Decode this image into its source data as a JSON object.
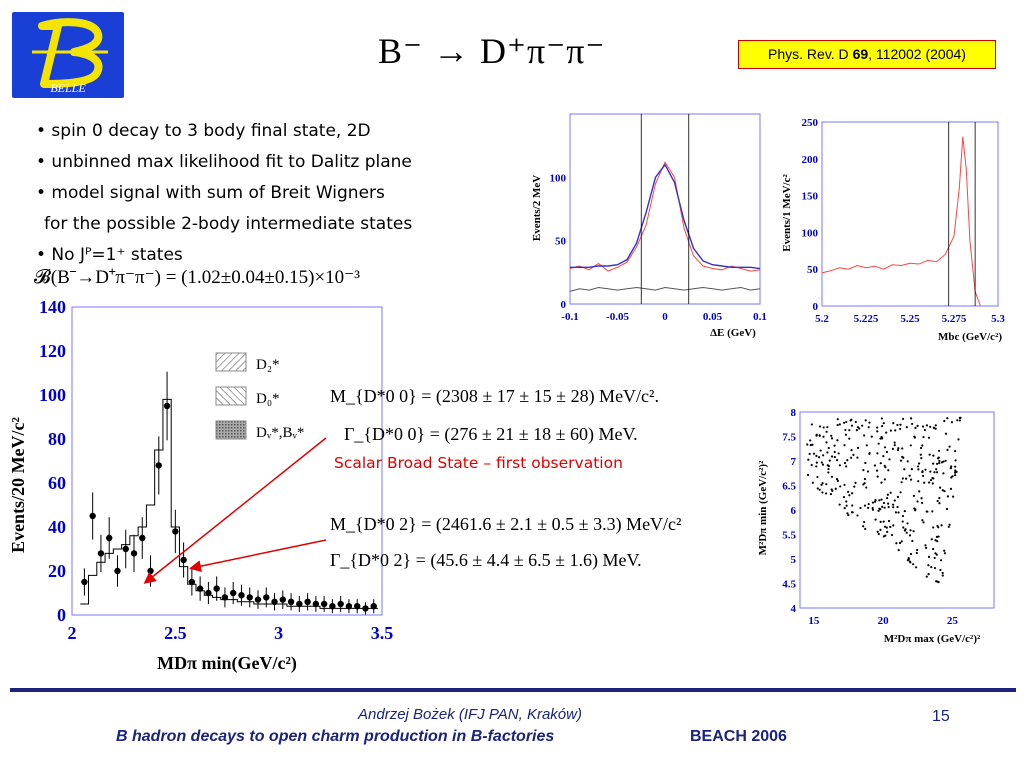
{
  "header": {
    "logo_text": "BELLE",
    "title": "B⁻ → D⁺π⁻π⁻",
    "reference_prefix": "Phys. Rev. D ",
    "reference_volume": "69",
    "reference_suffix": ", 112002 (2004)"
  },
  "bullets": [
    "• spin 0 decay to 3 body final state, 2D",
    "• unbinned max likelihood fit to Dalitz plane",
    "• model signal with sum of Breit Wigners",
    "for the possible 2-body intermediate states",
    "• No Jᴾ=1⁺ states"
  ],
  "branching_fraction": "𝓑(B⁻→D⁺π⁻π⁻) = (1.02±0.04±0.15)×10⁻³",
  "results": {
    "d0_mass": "M_{D*0 0} = (2308 ± 17 ± 15 ± 28)  MeV/c².",
    "d0_width": "Γ_{D*0 0} = (276 ± 21 ± 18 ± 60)  MeV.",
    "scalar_note": "Scalar Broad State – first observation",
    "d2_mass": "M_{D*0 2} = (2461.6 ± 2.1 ± 0.5 ± 3.3)  MeV/c²",
    "d2_width": "Γ_{D*0 2} = (45.6 ± 4.4 ± 6.5 ± 1.6)  MeV."
  },
  "chart_data": [
    {
      "type": "histogram",
      "title": "",
      "xlabel": "MDπ min(GeV/c²)",
      "ylabel": "Events/20 MeV/c²",
      "xlim": [
        2,
        3.5
      ],
      "ylim": [
        0,
        140
      ],
      "xticks": [
        "2",
        "2.5",
        "3",
        "3.5"
      ],
      "yticks": [
        "0",
        "20",
        "40",
        "60",
        "80",
        "100",
        "120",
        "140"
      ],
      "legend": [
        "D₂*",
        "D₀*",
        "Dᵥ*,Bᵥ*"
      ],
      "legend_placement": "upper-middle",
      "x": [
        2.06,
        2.1,
        2.14,
        2.18,
        2.22,
        2.26,
        2.3,
        2.34,
        2.38,
        2.42,
        2.46,
        2.5,
        2.54,
        2.58,
        2.62,
        2.66,
        2.7,
        2.74,
        2.78,
        2.82,
        2.86,
        2.9,
        2.94,
        2.98,
        3.02,
        3.06,
        3.1,
        3.14,
        3.18,
        3.22,
        3.26,
        3.3,
        3.34,
        3.38,
        3.42,
        3.46
      ],
      "series": [
        {
          "name": "data",
          "values": [
            15,
            45,
            28,
            35,
            20,
            30,
            28,
            35,
            20,
            68,
            95,
            38,
            25,
            15,
            12,
            10,
            12,
            8,
            10,
            9,
            8,
            7,
            8,
            6,
            7,
            6,
            5,
            6,
            5,
            5,
            4,
            5,
            4,
            4,
            3,
            4
          ]
        },
        {
          "name": "fit",
          "values": [
            5,
            18,
            24,
            28,
            30,
            32,
            36,
            40,
            50,
            75,
            98,
            40,
            22,
            14,
            11,
            9,
            8,
            7,
            7,
            6,
            6,
            5,
            5,
            5,
            5,
            4,
            4,
            4,
            4,
            3,
            3,
            3,
            3,
            3,
            3,
            3
          ]
        }
      ]
    },
    {
      "type": "histogram",
      "title": "",
      "xlabel": "ΔE (GeV)",
      "ylabel": "Events/2 MeV",
      "xlim": [
        -0.1,
        0.1
      ],
      "ylim": [
        0,
        150
      ],
      "xticks": [
        "-0.1",
        "-0.05",
        "0",
        "0.05",
        "0.1"
      ],
      "yticks": [
        "0",
        "50",
        "100"
      ],
      "cut_lines": [
        -0.025,
        0.025
      ],
      "x": [
        -0.1,
        -0.09,
        -0.08,
        -0.07,
        -0.06,
        -0.05,
        -0.04,
        -0.03,
        -0.02,
        -0.01,
        0,
        0.01,
        0.02,
        0.03,
        0.04,
        0.05,
        0.06,
        0.07,
        0.08,
        0.09,
        0.1
      ],
      "series": [
        {
          "name": "signal",
          "values": [
            28,
            30,
            27,
            32,
            26,
            29,
            33,
            45,
            62,
            95,
            112,
            100,
            60,
            38,
            30,
            28,
            27,
            30,
            28,
            26,
            27
          ]
        },
        {
          "name": "fit",
          "values": [
            29,
            29,
            29,
            30,
            30,
            31,
            35,
            48,
            72,
            100,
            110,
            96,
            66,
            44,
            34,
            31,
            30,
            29,
            29,
            29,
            28
          ]
        },
        {
          "name": "sideband",
          "values": [
            10,
            12,
            11,
            13,
            12,
            11,
            12,
            13,
            12,
            11,
            13,
            12,
            11,
            12,
            13,
            12,
            11,
            12,
            13,
            11,
            12
          ]
        }
      ]
    },
    {
      "type": "histogram",
      "title": "",
      "xlabel": "Mbc (GeV/c²)",
      "ylabel": "Events/1 MeV/c²",
      "xlim": [
        5.2,
        5.3
      ],
      "ylim": [
        0,
        250
      ],
      "xticks": [
        "5.2",
        "5.225",
        "5.25",
        "5.275",
        "5.3"
      ],
      "yticks": [
        "0",
        "50",
        "100",
        "150",
        "200",
        "250"
      ],
      "cut_lines": [
        5.272,
        5.287
      ],
      "x": [
        5.2,
        5.205,
        5.21,
        5.215,
        5.22,
        5.225,
        5.23,
        5.235,
        5.24,
        5.245,
        5.25,
        5.255,
        5.26,
        5.265,
        5.27,
        5.275,
        5.278,
        5.28,
        5.282,
        5.284,
        5.287,
        5.29
      ],
      "series": [
        {
          "name": "events",
          "values": [
            45,
            48,
            52,
            50,
            55,
            52,
            54,
            50,
            56,
            55,
            58,
            57,
            62,
            60,
            70,
            95,
            160,
            230,
            185,
            90,
            20,
            0
          ]
        }
      ]
    },
    {
      "type": "scatter",
      "title": "",
      "xlabel": "M²Dπ max (GeV/c²)²",
      "ylabel": "M²Dπ min (GeV/c²)²",
      "xlim": [
        14,
        28
      ],
      "ylim": [
        4,
        8
      ],
      "xticks": [
        "15",
        "20",
        "25"
      ],
      "yticks": [
        "4",
        "4.5",
        "5",
        "5.5",
        "6",
        "6.5",
        "7",
        "7.5",
        "8"
      ],
      "note": "Dalitz plot; dense band along the lower-left boundary near M²min≈5.5–6.2 and along the right edge near M²max≈25"
    }
  ],
  "footer": {
    "author": "Andrzej Bożek (IFJ PAN, Kraków)",
    "title": "B hadron decays to open charm production in B-factories",
    "conference": "BEACH 2006",
    "page": "15"
  },
  "colors": {
    "accent": "#1a237e",
    "logo_bg": "#1a3fd6",
    "logo_letter": "#f5e400",
    "highlight_red": "#e00000",
    "reference_bg": "#ffff00",
    "axis_blue": "#0000cc"
  }
}
